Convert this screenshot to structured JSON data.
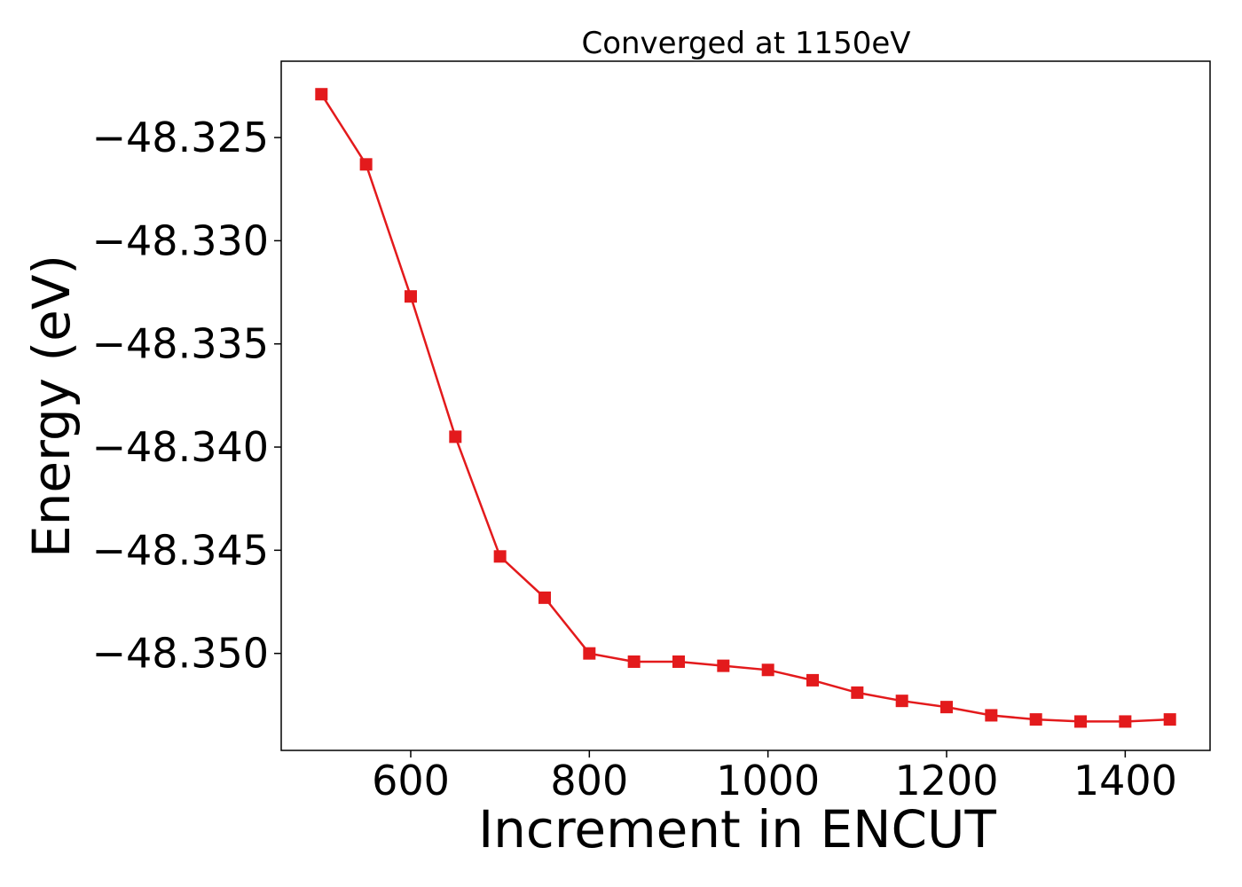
{
  "chart_data": {
    "type": "line",
    "title": "Converged at 1150eV",
    "xlabel": "Increment in ENCUT",
    "ylabel": "Energy (eV)",
    "xlim": [
      455,
      1495
    ],
    "ylim": [
      -48.3547,
      -48.3213
    ],
    "xticks": [
      600,
      800,
      1000,
      1200,
      1400
    ],
    "xtick_labels": [
      "600",
      "800",
      "1000",
      "1200",
      "1400"
    ],
    "yticks": [
      -48.325,
      -48.33,
      -48.335,
      -48.34,
      -48.345,
      -48.35
    ],
    "ytick_labels": [
      "−48.325",
      "−48.330",
      "−48.335",
      "−48.340",
      "−48.345",
      "−48.350"
    ],
    "grid": false,
    "series": [
      {
        "color": "#e31a1c",
        "marker": "square",
        "x": [
          500,
          550,
          600,
          650,
          700,
          750,
          800,
          850,
          900,
          950,
          1000,
          1050,
          1100,
          1150,
          1200,
          1250,
          1300,
          1350,
          1400,
          1450
        ],
        "y": [
          -48.3229,
          -48.3263,
          -48.3327,
          -48.3395,
          -48.3453,
          -48.3473,
          -48.35,
          -48.3504,
          -48.3504,
          -48.3506,
          -48.3508,
          -48.3513,
          -48.3519,
          -48.3523,
          -48.3526,
          -48.353,
          -48.3532,
          -48.3533,
          -48.3533,
          -48.3532
        ]
      }
    ]
  }
}
